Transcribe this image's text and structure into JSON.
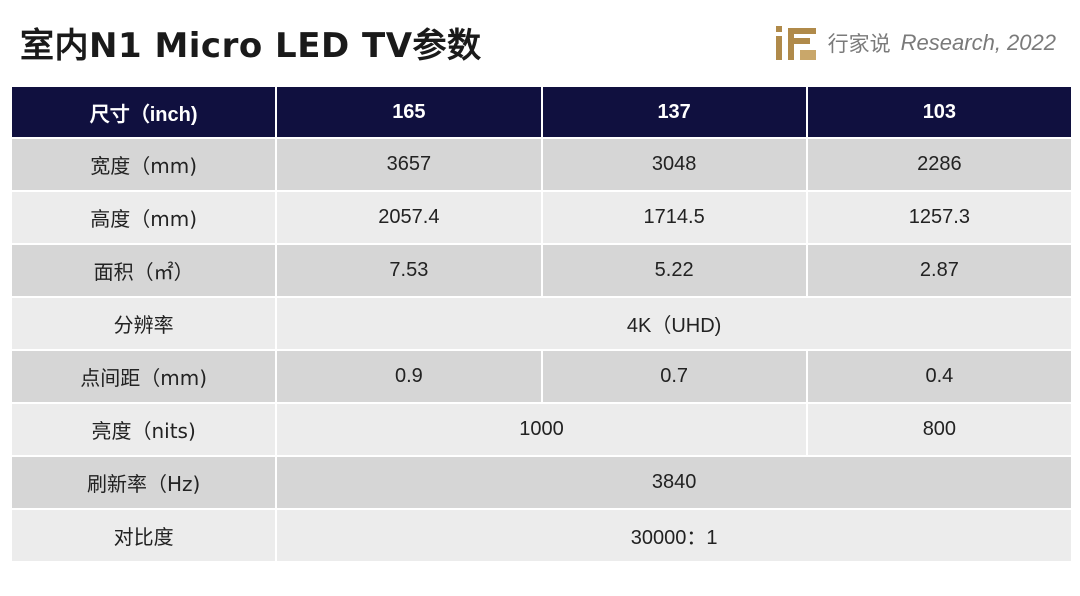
{
  "slide": {
    "title": "室内N1 Micro LED TV参数",
    "brand_cn": "行家说",
    "brand_en": "Research, 2022"
  },
  "table": {
    "header": [
      "尺寸（inch)",
      "165",
      "137",
      "103"
    ],
    "rows": [
      {
        "label": "宽度（mm)",
        "cells": [
          {
            "text": "3657",
            "span": 1
          },
          {
            "text": "3048",
            "span": 1
          },
          {
            "text": "2286",
            "span": 1
          }
        ]
      },
      {
        "label": "高度（mm)",
        "cells": [
          {
            "text": "2057.4",
            "span": 1
          },
          {
            "text": "1714.5",
            "span": 1
          },
          {
            "text": "1257.3",
            "span": 1
          }
        ]
      },
      {
        "label": "面积（㎡）",
        "cells": [
          {
            "text": "7.53",
            "span": 1
          },
          {
            "text": "5.22",
            "span": 1
          },
          {
            "text": "2.87",
            "span": 1
          }
        ]
      },
      {
        "label": "分辨率",
        "cells": [
          {
            "text": "4K（UHD)",
            "span": 3
          }
        ]
      },
      {
        "label": "点间距（mm)",
        "cells": [
          {
            "text": "0.9",
            "span": 1
          },
          {
            "text": "0.7",
            "span": 1
          },
          {
            "text": "0.4",
            "span": 1
          }
        ]
      },
      {
        "label": "亮度（nits)",
        "cells": [
          {
            "text": "1000",
            "span": 2
          },
          {
            "text": "800",
            "span": 1
          }
        ]
      },
      {
        "label": "刷新率（Hz)",
        "cells": [
          {
            "text": "3840",
            "span": 3
          }
        ]
      },
      {
        "label": "对比度",
        "cells": [
          {
            "text": "30000：1",
            "span": 3
          }
        ]
      }
    ]
  },
  "colors": {
    "header_bg": "#10103f",
    "row_dark": "#d6d6d6",
    "row_light": "#ececec",
    "logo_gold": "#b08a4a"
  },
  "icons": {
    "brand_logo": "brand-logo-icon"
  }
}
